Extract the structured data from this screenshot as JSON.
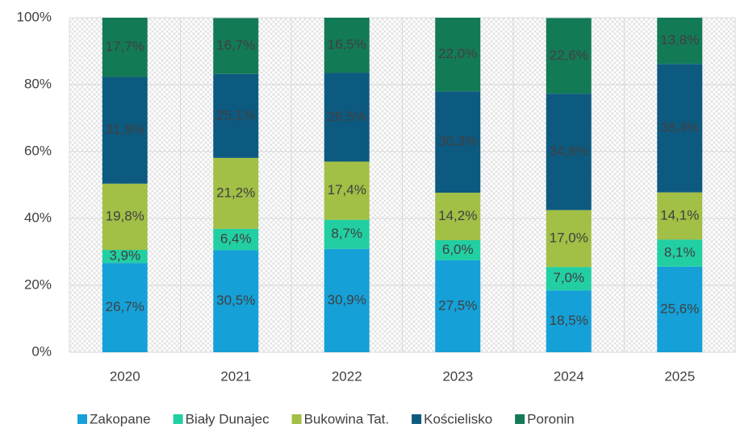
{
  "chart_data": {
    "type": "stacked_bar",
    "categories": [
      "2020",
      "2021",
      "2022",
      "2023",
      "2024",
      "2025"
    ],
    "series": [
      {
        "name": "Zakopane",
        "color": "#15a0d8",
        "values": [
          26.7,
          30.5,
          30.9,
          27.5,
          18.5,
          25.6
        ],
        "value_labels": [
          "26,7%",
          "30,5%",
          "30,9%",
          "27,5%",
          "18,5%",
          "25,6%"
        ]
      },
      {
        "name": "Biały Dunajec",
        "color": "#22cfa2",
        "values": [
          3.9,
          6.4,
          8.7,
          6.0,
          7.0,
          8.1
        ],
        "value_labels": [
          "3,9%",
          "6,4%",
          "8,7%",
          "6,0%",
          "7,0%",
          "8,1%"
        ]
      },
      {
        "name": "Bukowina Tat.",
        "color": "#a2bf46",
        "values": [
          19.8,
          21.2,
          17.4,
          14.2,
          17.0,
          14.1
        ],
        "value_labels": [
          "19,8%",
          "21,2%",
          "17,4%",
          "14,2%",
          "17,0%",
          "14,1%"
        ]
      },
      {
        "name": "Kościelisko",
        "color": "#0d5a80",
        "values": [
          31.9,
          25.1,
          26.5,
          30.3,
          34.8,
          38.4
        ],
        "value_labels": [
          "31,9%",
          "25,1%",
          "26,5%",
          "30,3%",
          "34,8%",
          "38,4%"
        ]
      },
      {
        "name": "Poronin",
        "color": "#137a56",
        "values": [
          17.7,
          16.7,
          16.5,
          22.0,
          22.6,
          13.8
        ],
        "value_labels": [
          "17,7%",
          "16,7%",
          "16,5%",
          "22,0%",
          "22,6%",
          "13,8%"
        ]
      }
    ],
    "ylim": [
      0,
      100
    ],
    "yticks": [
      {
        "value": 0,
        "label": "0%"
      },
      {
        "value": 20,
        "label": "20%"
      },
      {
        "value": 40,
        "label": "40%"
      },
      {
        "value": 60,
        "label": "60%"
      },
      {
        "value": 80,
        "label": "80%"
      },
      {
        "value": 100,
        "label": "100%"
      }
    ],
    "grid": true,
    "legend": "bottom"
  }
}
